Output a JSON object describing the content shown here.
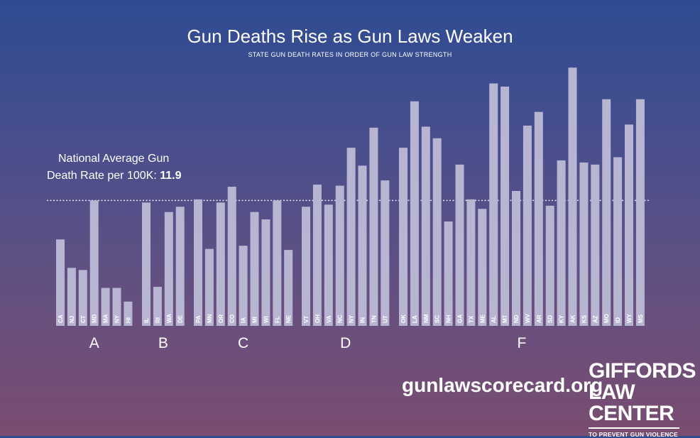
{
  "title": "Gun Deaths Rise as Gun Laws Weaken",
  "subtitle": "STATE GUN DEATH RATES IN ORDER OF GUN LAW STRENGTH",
  "average": {
    "line1": "National Average Gun",
    "line2_prefix": "Death Rate per 100K: ",
    "value_label": "11.9"
  },
  "url": "gunlawscorecard.org",
  "logo": {
    "line1": "GIFFORDS",
    "line2": "LAW CENTER",
    "line3": "TO PREVENT GUN VIOLENCE"
  },
  "colors": {
    "bar": "#b8b5d3",
    "average_line": "#e8e6f2",
    "text": "#ffffff"
  },
  "chart_data": {
    "type": "bar",
    "title": "Gun Deaths Rise as Gun Laws Weaken",
    "subtitle": "STATE GUN DEATH RATES IN ORDER OF GUN LAW STRENGTH",
    "xlabel": "",
    "ylabel": "",
    "ylim": [
      0,
      26
    ],
    "average": 11.9,
    "grid": false,
    "groups": [
      {
        "grade": "A",
        "states": [
          "CA",
          "NJ",
          "CT",
          "MD",
          "MA",
          "NY",
          "HI"
        ],
        "values": [
          8.2,
          5.5,
          5.3,
          11.9,
          3.6,
          3.6,
          2.3
        ]
      },
      {
        "grade": "B",
        "states": [
          "IL",
          "RI",
          "WA",
          "DE"
        ],
        "values": [
          11.7,
          3.7,
          10.8,
          11.3
        ]
      },
      {
        "grade": "C",
        "states": [
          "PA",
          "MN",
          "OR",
          "CO",
          "IA",
          "MI",
          "WI",
          "FL",
          "NE"
        ],
        "values": [
          12.0,
          7.3,
          11.7,
          13.2,
          7.6,
          10.8,
          10.1,
          11.9,
          7.2
        ]
      },
      {
        "grade": "D",
        "states": [
          "VT",
          "OH",
          "VA",
          "NC",
          "NY",
          "IN",
          "TN",
          "UT"
        ],
        "values": [
          11.3,
          13.4,
          11.5,
          13.3,
          16.9,
          15.2,
          18.8,
          13.8
        ]
      },
      {
        "grade": "F",
        "states": [
          "OK",
          "LA",
          "NM",
          "SC",
          "NH",
          "GA",
          "TX",
          "ME",
          "AL",
          "MT",
          "ND",
          "WV",
          "AR",
          "SD",
          "KY",
          "AK",
          "KS",
          "AZ",
          "MO",
          "ID",
          "WY",
          "MS"
        ],
        "values": [
          16.9,
          21.3,
          18.9,
          17.8,
          9.9,
          15.3,
          12.0,
          11.1,
          23.0,
          22.7,
          12.8,
          19.0,
          20.3,
          11.4,
          15.7,
          24.5,
          15.5,
          15.3,
          21.5,
          16.0,
          19.1,
          21.5
        ]
      }
    ]
  }
}
